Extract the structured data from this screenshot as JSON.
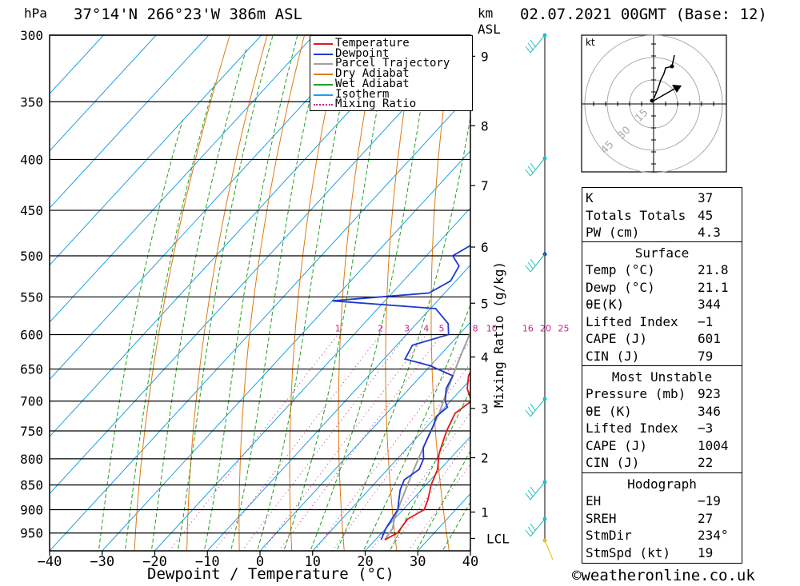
{
  "header": {
    "pressure_unit": "hPa",
    "location": "37°14'N  266°23'W  386m  ASL",
    "km_unit": "km",
    "asl": "ASL",
    "datetime": "02.07.2021  00GMT  (Base: 12)"
  },
  "legend": [
    {
      "label": "Temperature",
      "color": "#e01818",
      "style": "solid"
    },
    {
      "label": "Dewpoint",
      "color": "#1c3ad0",
      "style": "solid"
    },
    {
      "label": "Parcel Trajectory",
      "color": "#a0a0a0",
      "style": "solid"
    },
    {
      "label": "Dry Adiabat",
      "color": "#e07a10",
      "style": "solid"
    },
    {
      "label": "Wet Adiabat",
      "color": "#20a020",
      "style": "solid"
    },
    {
      "label": "Isotherm",
      "color": "#20a0e0",
      "style": "solid"
    },
    {
      "label": "Mixing Ratio",
      "color": "#d01c8c",
      "style": "dotted"
    }
  ],
  "chart_data": {
    "type": "line",
    "title": "37°14'N  266°23'W  386m  ASL",
    "xlabel": "Dewpoint / Temperature (°C)",
    "ylabel": "hPa",
    "y_right_label": "Mixing Ratio (g/kg)",
    "xlim": [
      -40,
      40
    ],
    "ylim": [
      990,
      300
    ],
    "x_ticks": [
      "-40",
      "-30",
      "-20",
      "-10",
      "0",
      "10",
      "20",
      "30",
      "40"
    ],
    "pressure_ticks": [
      "300",
      "350",
      "400",
      "450",
      "500",
      "550",
      "600",
      "650",
      "700",
      "750",
      "800",
      "850",
      "900",
      "950"
    ],
    "km_ticks": [
      {
        "label": "9",
        "p": 315
      },
      {
        "label": "8",
        "p": 370
      },
      {
        "label": "7",
        "p": 425
      },
      {
        "label": "6",
        "p": 490
      },
      {
        "label": "5",
        "p": 558
      },
      {
        "label": "4",
        "p": 632
      },
      {
        "label": "3",
        "p": 712
      },
      {
        "label": "2",
        "p": 798
      },
      {
        "label": "1",
        "p": 905
      },
      {
        "label": "LCL",
        "p": 962
      }
    ],
    "mixing_ratio_labels": [
      "1",
      "2",
      "3",
      "4",
      "5",
      "8",
      "10",
      "16",
      "20",
      "25"
    ],
    "series": [
      {
        "name": "Temperature",
        "color": "#e01818",
        "points": [
          [
            21.8,
            965
          ],
          [
            23,
            950
          ],
          [
            22.5,
            920
          ],
          [
            24,
            900
          ],
          [
            23,
            880
          ],
          [
            21,
            850
          ],
          [
            19.5,
            820
          ],
          [
            17,
            790
          ],
          [
            14.5,
            750
          ],
          [
            13,
            720
          ],
          [
            14,
            700
          ],
          [
            11,
            680
          ],
          [
            9,
            660
          ],
          [
            8,
            640
          ],
          [
            7,
            610
          ],
          [
            5,
            580
          ],
          [
            2,
            550
          ],
          [
            -1,
            520
          ],
          [
            -3,
            500
          ],
          [
            -6,
            480
          ],
          [
            -8,
            460
          ],
          [
            -11,
            440
          ],
          [
            -12,
            420
          ],
          [
            -14,
            400
          ],
          [
            -17,
            380
          ],
          [
            -20,
            360
          ],
          [
            -22,
            345
          ],
          [
            -25,
            330
          ],
          [
            -28,
            315
          ],
          [
            -31,
            300
          ]
        ]
      },
      {
        "name": "Dewpoint",
        "color": "#1c3ad0",
        "points": [
          [
            21.1,
            965
          ],
          [
            20,
            940
          ],
          [
            19.5,
            920
          ],
          [
            19,
            900
          ],
          [
            17.5,
            880
          ],
          [
            16,
            860
          ],
          [
            15,
            840
          ],
          [
            16,
            820
          ],
          [
            15,
            800
          ],
          [
            13,
            780
          ],
          [
            12,
            760
          ],
          [
            11,
            740
          ],
          [
            10,
            725
          ],
          [
            10.5,
            710
          ],
          [
            9,
            700
          ],
          [
            7,
            680
          ],
          [
            6,
            660
          ],
          [
            0,
            645
          ],
          [
            -6,
            635
          ],
          [
            -7,
            615
          ],
          [
            -2,
            600
          ],
          [
            -4,
            585
          ],
          [
            -9,
            565
          ],
          [
            -30,
            555
          ],
          [
            -13,
            545
          ],
          [
            -11,
            530
          ],
          [
            -12,
            512
          ],
          [
            -15,
            500
          ],
          [
            -13,
            485
          ],
          [
            -16,
            470
          ],
          [
            -17,
            455
          ],
          [
            -18,
            440
          ],
          [
            -21,
            428
          ],
          [
            -22,
            415
          ],
          [
            -24,
            400
          ],
          [
            -26,
            390
          ],
          [
            -30,
            380
          ],
          [
            -34,
            360
          ],
          [
            -39,
            350
          ],
          [
            -41,
            345
          ],
          [
            -39,
            330
          ],
          [
            -47,
            328
          ],
          [
            -44,
            310
          ],
          [
            -46,
            300
          ]
        ]
      },
      {
        "name": "Parcel Trajectory",
        "color": "#a0a0a0",
        "points": [
          [
            21.8,
            965
          ],
          [
            21.3,
            940
          ],
          [
            20,
            920
          ],
          [
            18,
            880
          ],
          [
            16,
            840
          ],
          [
            14,
            800
          ],
          [
            12,
            760
          ],
          [
            10,
            720
          ],
          [
            8,
            690
          ],
          [
            6,
            660
          ],
          [
            4,
            630
          ],
          [
            2,
            600
          ],
          [
            0,
            570
          ],
          [
            -2.5,
            545
          ],
          [
            -5,
            520
          ],
          [
            -8,
            495
          ],
          [
            -11,
            470
          ],
          [
            -14,
            445
          ],
          [
            -17,
            420
          ],
          [
            -20,
            400
          ],
          [
            -24,
            380
          ],
          [
            -28,
            362
          ]
        ]
      }
    ],
    "hodograph": {
      "unit": "kt",
      "rings": [
        "15",
        "30",
        "45"
      ],
      "storm_motion": {
        "dir_deg": 234,
        "speed_kt": 19
      }
    }
  },
  "indices": {
    "k_label": "K",
    "k_value": "37",
    "tt_label": "Totals Totals",
    "tt_value": "45",
    "pw_label": "PW (cm)",
    "pw_value": "4.3"
  },
  "surface": {
    "title": "Surface",
    "rows": [
      {
        "label": "Temp (°C)",
        "value": "21.8"
      },
      {
        "label": "Dewp (°C)",
        "value": "21.1"
      },
      {
        "label": "θE(K)",
        "value": "344"
      },
      {
        "label": "Lifted Index",
        "value": "-1"
      },
      {
        "label": "CAPE (J)",
        "value": "601"
      },
      {
        "label": "CIN (J)",
        "value": "79"
      }
    ]
  },
  "most_unstable": {
    "title": "Most Unstable",
    "rows": [
      {
        "label": "Pressure (mb)",
        "value": "923"
      },
      {
        "label": "θE (K)",
        "value": "346"
      },
      {
        "label": "Lifted Index",
        "value": "-3"
      },
      {
        "label": "CAPE (J)",
        "value": "1004"
      },
      {
        "label": "CIN (J)",
        "value": "22"
      }
    ]
  },
  "hodograph_table": {
    "title": "Hodograph",
    "rows": [
      {
        "label": "EH",
        "value": "-19"
      },
      {
        "label": "SREH",
        "value": "27"
      },
      {
        "label": "StmDir",
        "value": "234°"
      },
      {
        "label": "StmSpd (kt)",
        "value": "19"
      }
    ]
  },
  "footer": {
    "site": "©weatheronline.co.uk"
  }
}
